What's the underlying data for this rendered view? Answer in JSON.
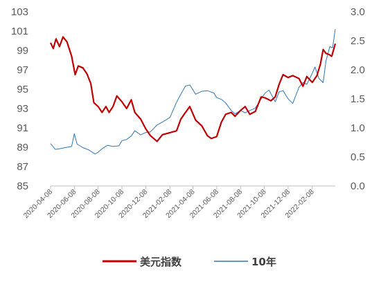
{
  "chart_data": {
    "type": "line",
    "title": "",
    "xlabel": "",
    "y_left": {
      "min": 85,
      "max": 103,
      "ticks": [
        85,
        87,
        89,
        91,
        93,
        95,
        97,
        99,
        101,
        103
      ]
    },
    "y_right": {
      "min": 0,
      "max": 3,
      "ticks": [
        "0.0",
        "0.5",
        "1.0",
        "1.5",
        "2.0",
        "2.5",
        "3.0"
      ]
    },
    "x_range": [
      "2020-04-08",
      "2022-04-08"
    ],
    "x_ticks": [
      "2020-04-08",
      "2020-06-08",
      "2020-08-08",
      "2020-10-08",
      "2020-12-08",
      "2021-02-08",
      "2021-04-08",
      "2021-06-08",
      "2021-08-08",
      "2021-10-08",
      "2021-12-08",
      "2022-02-08"
    ],
    "grid": false,
    "legend_position": "bottom",
    "series": [
      {
        "name": "美元指数",
        "axis": "left",
        "color": "#c00000",
        "points": [
          [
            "2020-04-08",
            99.8
          ],
          [
            "2020-04-15",
            99.2
          ],
          [
            "2020-04-22",
            100.2
          ],
          [
            "2020-05-01",
            99.4
          ],
          [
            "2020-05-10",
            100.4
          ],
          [
            "2020-05-20",
            99.9
          ],
          [
            "2020-06-01",
            98.4
          ],
          [
            "2020-06-10",
            96.5
          ],
          [
            "2020-06-18",
            97.4
          ],
          [
            "2020-06-30",
            97.2
          ],
          [
            "2020-07-10",
            96.6
          ],
          [
            "2020-07-20",
            95.6
          ],
          [
            "2020-07-28",
            93.6
          ],
          [
            "2020-08-08",
            93.2
          ],
          [
            "2020-08-18",
            92.6
          ],
          [
            "2020-08-28",
            93.2
          ],
          [
            "2020-09-05",
            92.6
          ],
          [
            "2020-09-15",
            93.2
          ],
          [
            "2020-09-25",
            94.3
          ],
          [
            "2020-10-08",
            93.7
          ],
          [
            "2020-10-20",
            93.0
          ],
          [
            "2020-11-01",
            93.9
          ],
          [
            "2020-11-10",
            92.6
          ],
          [
            "2020-11-25",
            91.9
          ],
          [
            "2020-12-08",
            90.9
          ],
          [
            "2020-12-20",
            90.2
          ],
          [
            "2021-01-06",
            89.6
          ],
          [
            "2021-01-20",
            90.3
          ],
          [
            "2021-02-08",
            90.5
          ],
          [
            "2021-02-25",
            90.7
          ],
          [
            "2021-03-08",
            91.9
          ],
          [
            "2021-03-20",
            92.6
          ],
          [
            "2021-03-31",
            93.2
          ],
          [
            "2021-04-15",
            91.8
          ],
          [
            "2021-05-01",
            91.2
          ],
          [
            "2021-05-15",
            90.2
          ],
          [
            "2021-05-25",
            89.9
          ],
          [
            "2021-06-08",
            90.1
          ],
          [
            "2021-06-20",
            91.6
          ],
          [
            "2021-07-01",
            92.4
          ],
          [
            "2021-07-15",
            92.6
          ],
          [
            "2021-07-25",
            92.2
          ],
          [
            "2021-08-08",
            92.8
          ],
          [
            "2021-08-20",
            93.2
          ],
          [
            "2021-09-01",
            92.4
          ],
          [
            "2021-09-15",
            92.7
          ],
          [
            "2021-09-30",
            94.2
          ],
          [
            "2021-10-10",
            94.1
          ],
          [
            "2021-10-25",
            93.8
          ],
          [
            "2021-11-05",
            94.2
          ],
          [
            "2021-11-15",
            95.5
          ],
          [
            "2021-11-25",
            96.5
          ],
          [
            "2021-12-08",
            96.2
          ],
          [
            "2021-12-20",
            96.4
          ],
          [
            "2022-01-05",
            96.1
          ],
          [
            "2022-01-15",
            95.3
          ],
          [
            "2022-01-25",
            96.3
          ],
          [
            "2022-02-08",
            95.7
          ],
          [
            "2022-02-20",
            96.4
          ],
          [
            "2022-03-01",
            97.6
          ],
          [
            "2022-03-08",
            99.1
          ],
          [
            "2022-03-15",
            98.7
          ],
          [
            "2022-03-22",
            98.6
          ],
          [
            "2022-03-30",
            98.4
          ],
          [
            "2022-04-08",
            99.7
          ]
        ]
      },
      {
        "name": "10年",
        "axis": "right",
        "color": "#2e75b6",
        "points": [
          [
            "2020-04-08",
            0.73
          ],
          [
            "2020-04-20",
            0.63
          ],
          [
            "2020-05-01",
            0.64
          ],
          [
            "2020-05-15",
            0.66
          ],
          [
            "2020-06-01",
            0.68
          ],
          [
            "2020-06-08",
            0.9
          ],
          [
            "2020-06-15",
            0.72
          ],
          [
            "2020-06-30",
            0.66
          ],
          [
            "2020-07-15",
            0.62
          ],
          [
            "2020-07-31",
            0.55
          ],
          [
            "2020-08-08",
            0.58
          ],
          [
            "2020-08-20",
            0.65
          ],
          [
            "2020-09-01",
            0.7
          ],
          [
            "2020-09-15",
            0.68
          ],
          [
            "2020-09-30",
            0.69
          ],
          [
            "2020-10-08",
            0.78
          ],
          [
            "2020-10-20",
            0.8
          ],
          [
            "2020-11-01",
            0.86
          ],
          [
            "2020-11-10",
            0.95
          ],
          [
            "2020-11-25",
            0.88
          ],
          [
            "2020-12-08",
            0.92
          ],
          [
            "2020-12-20",
            0.93
          ],
          [
            "2021-01-06",
            1.05
          ],
          [
            "2021-01-20",
            1.1
          ],
          [
            "2021-02-08",
            1.18
          ],
          [
            "2021-02-25",
            1.44
          ],
          [
            "2021-03-08",
            1.58
          ],
          [
            "2021-03-20",
            1.72
          ],
          [
            "2021-03-31",
            1.74
          ],
          [
            "2021-04-15",
            1.58
          ],
          [
            "2021-05-01",
            1.63
          ],
          [
            "2021-05-15",
            1.64
          ],
          [
            "2021-06-01",
            1.6
          ],
          [
            "2021-06-08",
            1.52
          ],
          [
            "2021-06-20",
            1.49
          ],
          [
            "2021-07-01",
            1.43
          ],
          [
            "2021-07-15",
            1.3
          ],
          [
            "2021-07-25",
            1.24
          ],
          [
            "2021-08-08",
            1.3
          ],
          [
            "2021-08-20",
            1.26
          ],
          [
            "2021-09-01",
            1.3
          ],
          [
            "2021-09-15",
            1.34
          ],
          [
            "2021-09-30",
            1.5
          ],
          [
            "2021-10-10",
            1.6
          ],
          [
            "2021-10-20",
            1.65
          ],
          [
            "2021-11-05",
            1.45
          ],
          [
            "2021-11-15",
            1.62
          ],
          [
            "2021-11-25",
            1.64
          ],
          [
            "2021-12-08",
            1.5
          ],
          [
            "2021-12-20",
            1.42
          ],
          [
            "2022-01-05",
            1.7
          ],
          [
            "2022-01-15",
            1.78
          ],
          [
            "2022-01-25",
            1.75
          ],
          [
            "2022-02-08",
            1.94
          ],
          [
            "2022-02-15",
            2.05
          ],
          [
            "2022-02-25",
            1.85
          ],
          [
            "2022-03-08",
            1.78
          ],
          [
            "2022-03-15",
            2.15
          ],
          [
            "2022-03-25",
            2.4
          ],
          [
            "2022-04-01",
            2.38
          ],
          [
            "2022-04-08",
            2.7
          ]
        ]
      }
    ]
  }
}
